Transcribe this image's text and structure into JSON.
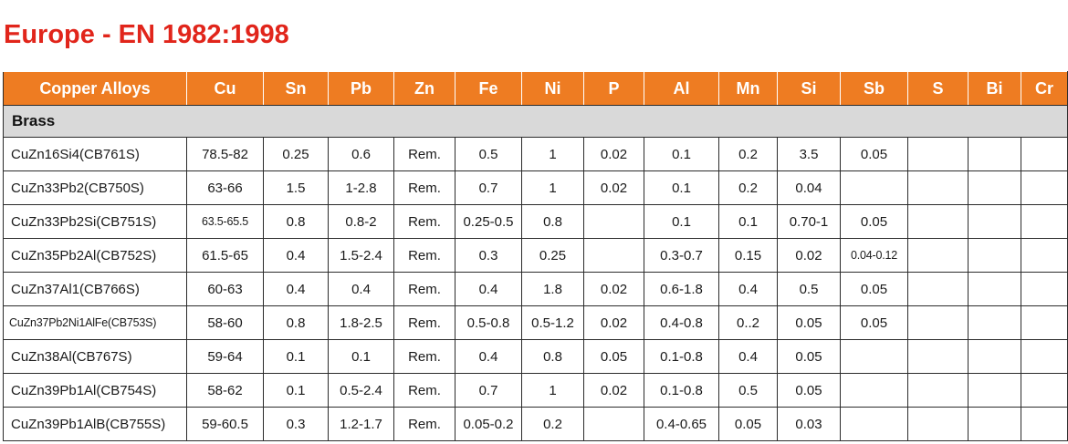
{
  "title": "Europe - EN 1982:1998",
  "header": [
    "Copper Alloys",
    "Cu",
    "Sn",
    "Pb",
    "Zn",
    "Fe",
    "Ni",
    "P",
    "Al",
    "Mn",
    "Si",
    "Sb",
    "S",
    "Bi",
    "Cr"
  ],
  "group": "Brass",
  "rows": [
    [
      "CuZn16Si4(CB761S)",
      "78.5-82",
      "0.25",
      "0.6",
      "Rem.",
      "0.5",
      "1",
      "0.02",
      "0.1",
      "0.2",
      "3.5",
      "0.05",
      "",
      "",
      ""
    ],
    [
      "CuZn33Pb2(CB750S)",
      "63-66",
      "1.5",
      "1-2.8",
      "Rem.",
      "0.7",
      "1",
      "0.02",
      "0.1",
      "0.2",
      "0.04",
      "",
      "",
      "",
      ""
    ],
    [
      "CuZn33Pb2Si(CB751S)",
      "63.5-65.5",
      "0.8",
      "0.8-2",
      "Rem.",
      "0.25-0.5",
      "0.8",
      "",
      "0.1",
      "0.1",
      "0.70-1",
      "0.05",
      "",
      "",
      ""
    ],
    [
      "CuZn35Pb2Al(CB752S)",
      "61.5-65",
      "0.4",
      "1.5-2.4",
      "Rem.",
      "0.3",
      "0.25",
      "",
      "0.3-0.7",
      "0.15",
      "0.02",
      "0.04-0.12",
      "",
      "",
      ""
    ],
    [
      "CuZn37Al1(CB766S)",
      "60-63",
      "0.4",
      "0.4",
      "Rem.",
      "0.4",
      "1.8",
      "0.02",
      "0.6-1.8",
      "0.4",
      "0.5",
      "0.05",
      "",
      "",
      ""
    ],
    [
      "CuZn37Pb2Ni1AlFe(CB753S)",
      "58-60",
      "0.8",
      "1.8-2.5",
      "Rem.",
      "0.5-0.8",
      "0.5-1.2",
      "0.02",
      "0.4-0.8",
      "0..2",
      "0.05",
      "0.05",
      "",
      "",
      ""
    ],
    [
      "CuZn38Al(CB767S)",
      "59-64",
      "0.1",
      "0.1",
      "Rem.",
      "0.4",
      "0.8",
      "0.05",
      "0.1-0.8",
      "0.4",
      "0.05",
      "",
      "",
      "",
      ""
    ],
    [
      "CuZn39Pb1Al(CB754S)",
      "58-62",
      "0.1",
      "0.5-2.4",
      "Rem.",
      "0.7",
      "1",
      "0.02",
      "0.1-0.8",
      "0.5",
      "0.05",
      "",
      "",
      "",
      ""
    ],
    [
      "CuZn39Pb1AlB(CB755S)",
      "59-60.5",
      "0.3",
      "1.2-1.7",
      "Rem.",
      "0.05-0.2",
      "0.2",
      "",
      "0.4-0.65",
      "0.05",
      "0.03",
      "",
      "",
      "",
      ""
    ]
  ]
}
